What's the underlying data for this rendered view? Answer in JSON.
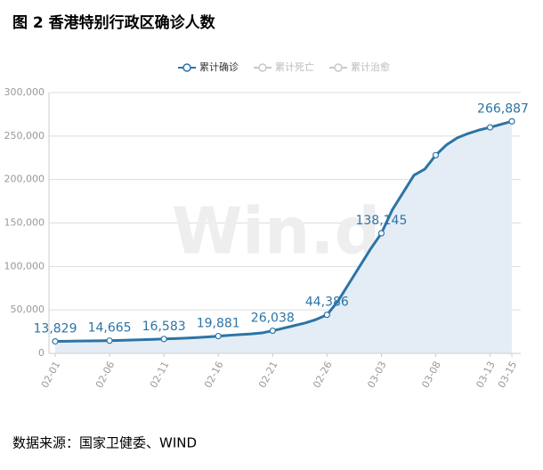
{
  "chart_data": {
    "type": "line",
    "title": "图 2 香港特别行政区确诊人数",
    "source": "数据来源：国家卫健委、WIND",
    "watermark": "Win.d",
    "categories": [
      "02-01",
      null,
      null,
      null,
      null,
      "02-06",
      null,
      null,
      null,
      null,
      "02-11",
      null,
      null,
      null,
      null,
      "02-16",
      null,
      null,
      null,
      null,
      "02-21",
      null,
      null,
      null,
      null,
      "02-26",
      null,
      null,
      null,
      null,
      "03-03",
      null,
      null,
      null,
      null,
      "03-08",
      null,
      null,
      null,
      null,
      "03-13",
      null,
      "03-15"
    ],
    "series": [
      {
        "name": "累计确诊",
        "color": "#2c74a6",
        "values": [
          13829,
          14000,
          14200,
          14300,
          14500,
          14665,
          15000,
          15300,
          15700,
          16100,
          16583,
          17000,
          17500,
          18200,
          19000,
          19881,
          20800,
          21600,
          22400,
          23500,
          26038,
          29000,
          32000,
          35000,
          39000,
          44386,
          60000,
          80000,
          100000,
          120000,
          138145,
          165000,
          185000,
          205000,
          212000,
          228000,
          240000,
          248000,
          253000,
          257000,
          260000,
          263500,
          266887
        ],
        "value_labels": [
          "13,829",
          null,
          null,
          null,
          null,
          "14,665",
          null,
          null,
          null,
          null,
          "16,583",
          null,
          null,
          null,
          null,
          "19,881",
          null,
          null,
          null,
          null,
          "26,038",
          null,
          null,
          null,
          null,
          "44,386",
          null,
          null,
          null,
          null,
          "138,145",
          null,
          null,
          null,
          null,
          null,
          null,
          null,
          null,
          null,
          null,
          null,
          "266,887"
        ]
      },
      {
        "name": "累计死亡",
        "color": "#c8c8c8"
      },
      {
        "name": "累计治愈",
        "color": "#c8c8c8"
      }
    ],
    "ylim": [
      0,
      300000
    ],
    "yticks": [
      0,
      {
        "value": 50000,
        "label": "50,000"
      },
      {
        "value": 100000,
        "label": "100,000"
      },
      {
        "value": 150000,
        "label": "150,000"
      },
      {
        "value": 200000,
        "label": "200,000"
      },
      {
        "value": 250000,
        "label": "250,000"
      },
      {
        "value": 300000,
        "label": "300,000"
      }
    ],
    "grid": true,
    "area_color": "#e4edf5"
  }
}
